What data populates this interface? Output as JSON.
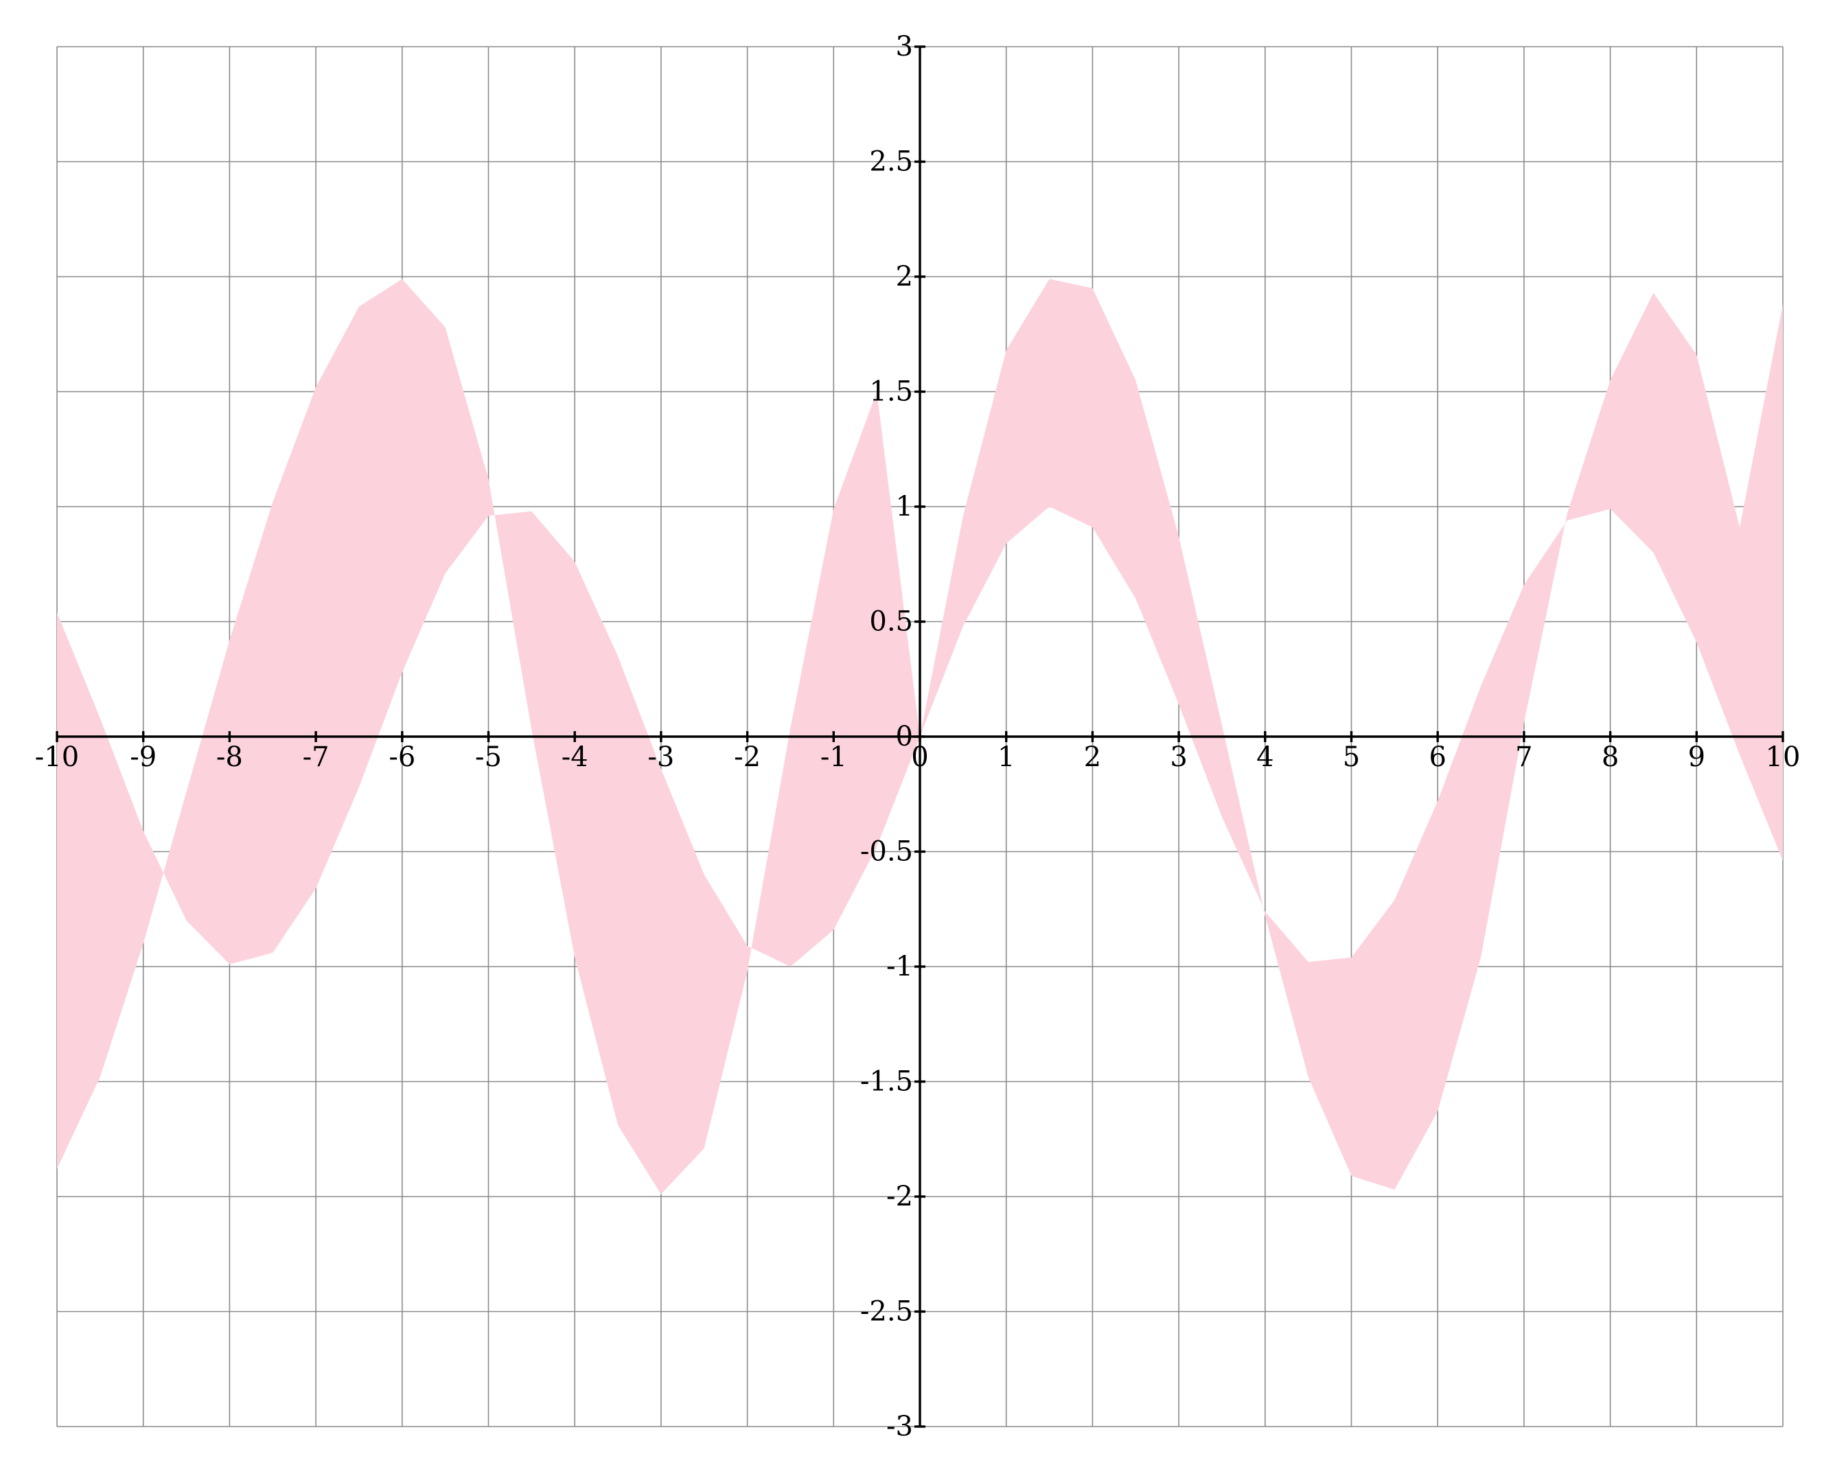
{
  "chart_data": {
    "type": "area",
    "title": "",
    "xlabel": "",
    "ylabel": "",
    "xlim": [
      -10,
      10
    ],
    "ylim": [
      -3,
      3
    ],
    "grid": true,
    "x_ticks": [
      "-10",
      "-9",
      "-8",
      "-7",
      "-6",
      "-5",
      "-4",
      "-3",
      "-2",
      "-1",
      "0",
      "1",
      "2",
      "3",
      "4",
      "5",
      "6",
      "7",
      "8",
      "9",
      "10"
    ],
    "y_ticks": [
      "-3",
      "-2.5",
      "-2",
      "-1.5",
      "-1",
      "-0.5",
      "0",
      "0.5",
      "1",
      "1.5",
      "2",
      "2.5",
      "3"
    ],
    "fill_color": "#fcd3dd",
    "series": [
      {
        "x": [
          -10,
          -9.5,
          -9,
          -8.5,
          -8,
          -7.5,
          -7,
          -6.5,
          -6,
          -5.5,
          -5,
          -4.5,
          -4,
          -3.5,
          -3,
          -2.5,
          -2,
          -1.5,
          -1,
          -0.5,
          0,
          0.5,
          1,
          1.5,
          2,
          2.5,
          3,
          3.5,
          4,
          4.5,
          5,
          5.5,
          6,
          6.5,
          7,
          7.5,
          8,
          8.5,
          9,
          9.5,
          10
        ],
        "y": [
          0.54,
          0.08,
          -0.41,
          -0.8,
          -0.99,
          -0.94,
          -0.66,
          -0.22,
          0.28,
          0.71,
          0.96,
          0.98,
          0.76,
          0.35,
          -0.14,
          -0.6,
          -0.91,
          -1.0,
          -0.84,
          -0.48,
          0.0,
          0.48,
          0.84,
          1.0,
          0.91,
          0.6,
          0.14,
          -0.35,
          -0.76,
          -0.98,
          -0.96,
          -0.71,
          -0.28,
          0.22,
          0.66,
          0.94,
          0.99,
          0.8,
          0.41,
          -0.08,
          -0.54
        ]
      },
      {
        "x": [
          -10,
          -9.5,
          -9,
          -8.5,
          -8,
          -7.5,
          -7,
          -6.5,
          -6,
          -5.5,
          -5,
          -4.5,
          -4,
          -3.5,
          -3,
          -2.5,
          -2,
          -1.5,
          -1,
          -0.5,
          0,
          0.5,
          1,
          1.5,
          2,
          2.5,
          3,
          3.5,
          4,
          4.5,
          5,
          5.5,
          6,
          6.5,
          7,
          7.5,
          8,
          8.5,
          9,
          9.5,
          10
        ],
        "y": [
          -1.88,
          -1.48,
          -0.9,
          -0.24,
          0.42,
          1.02,
          1.52,
          1.87,
          1.99,
          1.78,
          1.12,
          0.03,
          -0.96,
          -1.69,
          -1.99,
          -1.79,
          -1.02,
          0.04,
          0.99,
          1.5,
          0.0,
          0.96,
          1.68,
          1.99,
          1.95,
          1.55,
          0.87,
          0.05,
          -0.78,
          -1.48,
          -1.91,
          -1.97,
          -1.63,
          -0.96,
          0.06,
          0.97,
          1.55,
          1.93,
          1.66,
          0.91,
          1.88
        ]
      }
    ]
  }
}
